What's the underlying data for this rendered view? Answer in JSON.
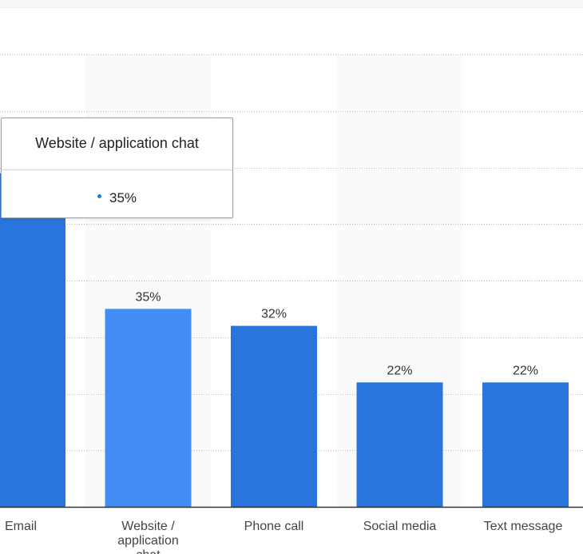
{
  "chart_data": {
    "type": "bar",
    "categories": [
      "Email",
      "Website / application chat",
      "Phone call",
      "Social media",
      "Text message"
    ],
    "values": [
      59,
      35,
      32,
      22,
      22
    ],
    "value_labels": [
      "",
      "35%",
      "32%",
      "22%",
      "22%"
    ],
    "ylim": [
      0,
      80
    ],
    "grid": true,
    "highlighted_index": 1,
    "colors": {
      "bar": "#2876dd",
      "bar_highlight": "#438ef5",
      "band": "#fafafa",
      "grid": "#bcbcbc",
      "axis": "#333333"
    }
  },
  "tooltip": {
    "title": "Website / application chat",
    "value": "35%"
  }
}
